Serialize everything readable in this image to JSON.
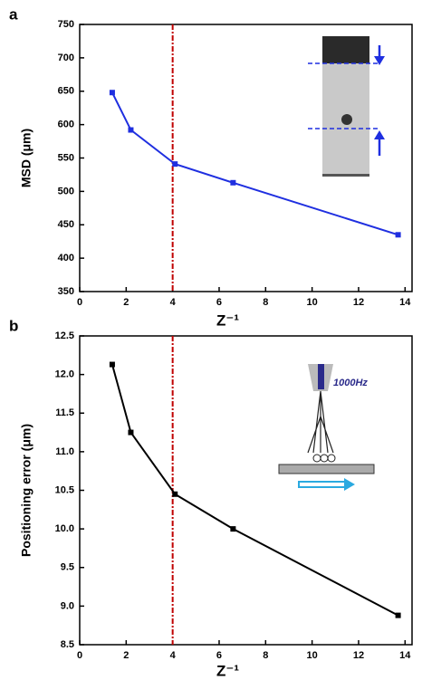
{
  "chart_data": [
    {
      "type": "line",
      "panel_label": "a",
      "y_label": "MSD (μm)",
      "x_label": "Z⁻¹",
      "x": [
        1.4,
        2.2,
        4.1,
        6.6,
        13.7
      ],
      "series": [
        {
          "color": "#1f2fe0",
          "values": [
            648,
            592,
            541,
            513,
            435
          ]
        }
      ],
      "xlim": [
        0,
        14.3
      ],
      "xticks": [
        0,
        2,
        4,
        6,
        8,
        10,
        12,
        14
      ],
      "ylim": [
        350,
        750
      ],
      "yticks": [
        350,
        400,
        450,
        500,
        550,
        600,
        650,
        700,
        750
      ],
      "vline": 4,
      "vline_color": "#c00000"
    },
    {
      "type": "line",
      "panel_label": "b",
      "y_label": "Positioning error (μm)",
      "x_label": "Z⁻¹",
      "x": [
        1.4,
        2.2,
        4.1,
        6.6,
        13.7
      ],
      "series": [
        {
          "color": "#000000",
          "values": [
            12.13,
            11.25,
            10.45,
            10.0,
            8.88
          ]
        }
      ],
      "xlim": [
        0,
        14.3
      ],
      "xticks": [
        0,
        2,
        4,
        6,
        8,
        10,
        12,
        14
      ],
      "ylim": [
        8.5,
        12.5
      ],
      "yticks": [
        {
          "value": 8.5,
          "label": "8.5"
        },
        {
          "value": 9,
          "label": "9.0"
        },
        9.5,
        {
          "value": 10,
          "label": "10.0"
        },
        10.5,
        {
          "value": 11,
          "label": "11.0"
        },
        11.5,
        {
          "value": 12,
          "label": "12.0"
        },
        12.5
      ],
      "vline": 4,
      "vline_color": "#c00000",
      "annotations": [
        "1000Hz"
      ]
    }
  ]
}
